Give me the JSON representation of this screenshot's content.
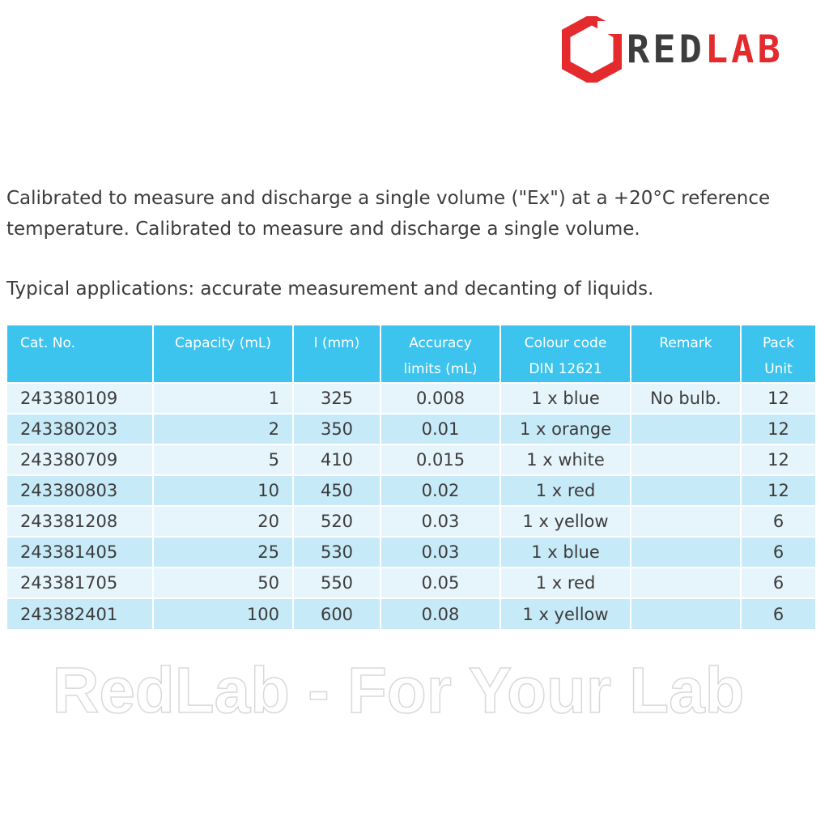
{
  "brand": {
    "name_part1": "RED",
    "name_part2": "LAB",
    "accent_color": "#e42a2d",
    "dark_color": "#3d3d3d",
    "logo_icon": "hexagon-logo-icon"
  },
  "intro": {
    "line1": "Calibrated to measure and discharge a single volume (\"Ex\") at a +20°C reference",
    "line2": "temperature. Calibrated to measure and discharge a single volume.",
    "applications": "Typical applications: accurate measurement and decanting of liquids."
  },
  "table": {
    "header_color": "#3cc3ee",
    "columns": [
      {
        "line1": "Cat. No.",
        "line2": ""
      },
      {
        "line1": "Capacity (mL)",
        "line2": ""
      },
      {
        "line1": "l (mm)",
        "line2": ""
      },
      {
        "line1": "Accuracy",
        "line2": "limits (mL)"
      },
      {
        "line1": "Colour code",
        "line2": "DIN 12621"
      },
      {
        "line1": "Remark",
        "line2": ""
      },
      {
        "line1": "Pack",
        "line2": "Unit"
      }
    ],
    "rows": [
      {
        "cat_no": "243380109",
        "capacity": "1",
        "length": "325",
        "accuracy": "0.008",
        "colour": "1 x blue",
        "remark": "No bulb.",
        "pack": "12"
      },
      {
        "cat_no": "243380203",
        "capacity": "2",
        "length": "350",
        "accuracy": "0.01",
        "colour": "1 x orange",
        "remark": "",
        "pack": "12"
      },
      {
        "cat_no": "243380709",
        "capacity": "5",
        "length": "410",
        "accuracy": "0.015",
        "colour": "1 x white",
        "remark": "",
        "pack": "12"
      },
      {
        "cat_no": "243380803",
        "capacity": "10",
        "length": "450",
        "accuracy": "0.02",
        "colour": "1 x red",
        "remark": "",
        "pack": "12"
      },
      {
        "cat_no": "243381208",
        "capacity": "20",
        "length": "520",
        "accuracy": "0.03",
        "colour": "1 x yellow",
        "remark": "",
        "pack": "6"
      },
      {
        "cat_no": "243381405",
        "capacity": "25",
        "length": "530",
        "accuracy": "0.03",
        "colour": "1 x blue",
        "remark": "",
        "pack": "6"
      },
      {
        "cat_no": "243381705",
        "capacity": "50",
        "length": "550",
        "accuracy": "0.05",
        "colour": "1 x red",
        "remark": "",
        "pack": "6"
      },
      {
        "cat_no": "243382401",
        "capacity": "100",
        "length": "600",
        "accuracy": "0.08",
        "colour": "1 x yellow",
        "remark": "",
        "pack": "6"
      }
    ]
  },
  "watermark": {
    "text": "RedLab - For Your Lab"
  }
}
